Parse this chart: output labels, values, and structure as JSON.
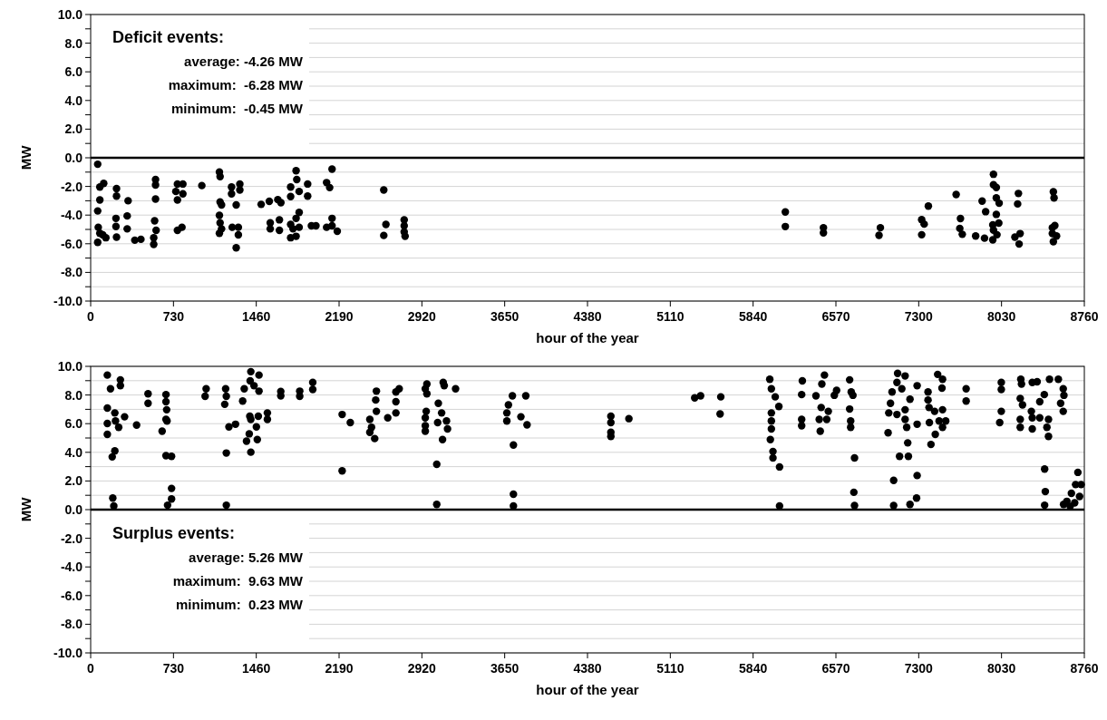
{
  "chart_data": [
    {
      "type": "scatter",
      "xlabel": "hour of the year",
      "ylabel": "MW",
      "color": "#000000",
      "marker": "circle",
      "grid": "y",
      "annotations": [
        "Deficit events:",
        "average: -4.26 MW",
        "maximum:  -6.28 MW",
        "minimum:  -0.45 MW"
      ],
      "ref_lines": [
        {
          "axis": "y",
          "value": 0,
          "color": "#000000"
        }
      ],
      "xlim": [
        0,
        8760
      ],
      "xticks": [
        0,
        730,
        1460,
        2190,
        2920,
        3650,
        4380,
        5110,
        5840,
        6570,
        7300,
        8030,
        8760
      ],
      "ylim": [
        -10,
        10
      ],
      "yticks": [
        {
          "value": -10,
          "label": "-10.0"
        },
        {
          "value": -9,
          "label": null
        },
        {
          "value": -8,
          "label": "-8.0"
        },
        {
          "value": -7,
          "label": null
        },
        {
          "value": -6,
          "label": "-6.0"
        },
        {
          "value": -5,
          "label": null
        },
        {
          "value": -4,
          "label": "-4.0"
        },
        {
          "value": -3,
          "label": null
        },
        {
          "value": -2,
          "label": "-2.0"
        },
        {
          "value": -1,
          "label": null
        },
        {
          "value": 0,
          "label": "0.0"
        },
        {
          "value": 1,
          "label": null
        },
        {
          "value": 2,
          "label": "2.0"
        },
        {
          "value": 3,
          "label": null
        },
        {
          "value": 4,
          "label": "4.0"
        },
        {
          "value": 5,
          "label": null
        },
        {
          "value": 6,
          "label": "6.0"
        },
        {
          "value": 7,
          "label": null
        },
        {
          "value": 8,
          "label": "8.0"
        },
        {
          "value": 9,
          "label": null
        },
        {
          "value": 10,
          "label": "10.0"
        }
      ],
      "x": [
        62,
        81,
        115,
        81,
        62,
        67,
        81,
        62,
        107,
        134,
        228,
        228,
        223,
        223,
        228,
        330,
        322,
        322,
        389,
        443,
        572,
        572,
        572,
        564,
        577,
        556,
        556,
        751,
        765,
        813,
        813,
        765,
        765,
        805,
        980,
        1135,
        1141,
        1141,
        1154,
        1135,
        1141,
        1154,
        1135,
        1242,
        1242,
        1315,
        1315,
        1283,
        1248,
        1302,
        1302,
        1283,
        1503,
        1575,
        1650,
        1677,
        1583,
        1583,
        1664,
        1664,
        1811,
        1817,
        1763,
        1838,
        1763,
        1913,
        1913,
        1838,
        1811,
        1763,
        1784,
        1763,
        1811,
        1838,
        1946,
        1986,
        2128,
        2080,
        2107,
        2128,
        2128,
        2174,
        2080,
        2584,
        2603,
        2584,
        2764,
        2764,
        2764,
        2772,
        6124,
        6124,
        6460,
        6460,
        6962,
        6950,
        7326,
        7348,
        7326,
        7385,
        7630,
        7668,
        7662,
        7684,
        7802,
        7880,
        7859,
        7890,
        7959,
        7959,
        7984,
        7984,
        8009,
        7984,
        7953,
        8006,
        7959,
        7990,
        7953,
        8179,
        8172,
        8148,
        8194,
        8185,
        8487,
        8493,
        8478,
        8500,
        8478,
        8515,
        8487
      ],
      "values": [
        -0.45,
        -2.04,
        -1.79,
        -2.94,
        -3.71,
        -4.85,
        -5.27,
        -5.9,
        -5.38,
        -5.58,
        -2.15,
        -2.67,
        -4.23,
        -4.79,
        -5.54,
        -3.0,
        -4.06,
        -4.96,
        -5.75,
        -5.69,
        -1.52,
        -1.9,
        -2.88,
        -4.4,
        -5.06,
        -5.58,
        -6.04,
        -2.35,
        -1.83,
        -1.83,
        -2.52,
        -2.94,
        -5.06,
        -4.85,
        -1.94,
        -1.0,
        -1.31,
        -3.08,
        -3.29,
        -4.02,
        -4.54,
        -4.96,
        -5.27,
        -2.04,
        -2.52,
        -1.83,
        -2.25,
        -3.29,
        -4.85,
        -4.85,
        -5.38,
        -6.28,
        -3.25,
        -3.04,
        -2.92,
        -3.13,
        -4.54,
        -4.96,
        -4.33,
        -5.06,
        -0.9,
        -1.52,
        -2.04,
        -2.35,
        -2.71,
        -1.83,
        -2.67,
        -3.81,
        -4.23,
        -4.65,
        -4.96,
        -5.58,
        -5.48,
        -4.85,
        -4.75,
        -4.75,
        -0.79,
        -1.73,
        -2.08,
        -4.23,
        -4.75,
        -5.13,
        -4.85,
        -2.25,
        -4.65,
        -5.42,
        -4.33,
        -4.75,
        -5.17,
        -5.48,
        -3.78,
        -4.8,
        -4.88,
        -5.24,
        -4.88,
        -5.41,
        -4.32,
        -4.63,
        -5.37,
        -3.37,
        -2.56,
        -4.24,
        -4.93,
        -5.34,
        -5.46,
        -5.61,
        -3.02,
        -3.76,
        -1.15,
        -1.88,
        -2.07,
        -2.8,
        -3.17,
        -3.95,
        -4.68,
        -4.56,
        -5.05,
        -5.37,
        -5.73,
        -2.49,
        -3.22,
        -5.54,
        -5.29,
        -6.02,
        -2.37,
        -2.8,
        -4.88,
        -4.73,
        -5.29,
        -5.46,
        -5.85
      ]
    },
    {
      "type": "scatter",
      "xlabel": "hour of the year",
      "ylabel": "MW",
      "color": "#000000",
      "marker": "circle",
      "grid": "y",
      "annotations": [
        "Surplus events:",
        "average: 5.26 MW",
        "maximum:  9.63 MW",
        "minimum:  0.23 MW"
      ],
      "ref_lines": [
        {
          "axis": "y",
          "value": 0,
          "color": "#000000"
        }
      ],
      "xlim": [
        0,
        8760
      ],
      "xticks": [
        0,
        730,
        1460,
        2190,
        2920,
        3650,
        4380,
        5110,
        5840,
        6570,
        7300,
        8030,
        8760
      ],
      "ylim": [
        -10,
        10
      ],
      "yticks": [
        {
          "value": -10,
          "label": "-10.0"
        },
        {
          "value": -9,
          "label": null
        },
        {
          "value": -8,
          "label": "-8.0"
        },
        {
          "value": -7,
          "label": null
        },
        {
          "value": -6,
          "label": "-6.0"
        },
        {
          "value": -5,
          "label": null
        },
        {
          "value": -4,
          "label": "-4.0"
        },
        {
          "value": -3,
          "label": null
        },
        {
          "value": -2,
          "label": "-2.0"
        },
        {
          "value": -1,
          "label": null
        },
        {
          "value": 0,
          "label": "0.0"
        },
        {
          "value": 1,
          "label": null
        },
        {
          "value": 2,
          "label": "2.0"
        },
        {
          "value": 3,
          "label": null
        },
        {
          "value": 4,
          "label": "4.0"
        },
        {
          "value": 5,
          "label": null
        },
        {
          "value": 6,
          "label": "6.0"
        },
        {
          "value": 7,
          "label": null
        },
        {
          "value": 8,
          "label": "8.0"
        },
        {
          "value": 9,
          "label": null
        },
        {
          "value": 10,
          "label": "10.0"
        }
      ],
      "x": [
        147,
        175,
        262,
        262,
        147,
        213,
        299,
        147,
        219,
        247,
        147,
        213,
        190,
        195,
        204,
        405,
        506,
        506,
        664,
        664,
        670,
        664,
        630,
        673,
        664,
        713,
        713,
        713,
        678,
        1018,
        1009,
        1190,
        1196,
        1182,
        1219,
        1196,
        1196,
        1277,
        1354,
        1340,
        1412,
        1406,
        1440,
        1484,
        1484,
        1403,
        1412,
        1478,
        1461,
        1398,
        1374,
        1469,
        1412,
        1558,
        1558,
        1676,
        1676,
        1843,
        1843,
        1958,
        1958,
        2217,
        2289,
        2217,
        2461,
        2476,
        2504,
        2461,
        2519,
        2513,
        2519,
        2619,
        2691,
        2720,
        2691,
        2691,
        2964,
        2950,
        2964,
        2958,
        2950,
        2950,
        2950,
        3065,
        3094,
        3059,
        3137,
        3146,
        3102,
        3051,
        3051,
        3108,
        3117,
        3217,
        3718,
        3836,
        3683,
        3669,
        3669,
        3793,
        3847,
        3727,
        3727,
        3727,
        4586,
        4586,
        4586,
        4586,
        4745,
        5325,
        5377,
        5555,
        5549,
        5987,
        6001,
        6035,
        6067,
        6001,
        6001,
        6001,
        5992,
        6015,
        6015,
        6073,
        6073,
        6274,
        6268,
        6268,
        6268,
        6469,
        6446,
        6394,
        6440,
        6503,
        6489,
        6423,
        6432,
        6576,
        6556,
        6691,
        6705,
        6720,
        6691,
        6700,
        6700,
        6734,
        6728,
        6734,
        7114,
        7180,
        7108,
        7151,
        7065,
        7051,
        7036,
        7108,
        7180,
        7180,
        7194,
        7030,
        7223,
        7286,
        7286,
        7203,
        7131,
        7209,
        7079,
        7286,
        7079,
        7223,
        7281,
        7467,
        7510,
        7505,
        7382,
        7382,
        7391,
        7440,
        7510,
        7394,
        7480,
        7538,
        7510,
        7446,
        7408,
        7718,
        7718,
        8028,
        8028,
        8028,
        8014,
        8200,
        8206,
        8301,
        8344,
        8195,
        8215,
        8407,
        8367,
        8453,
        8531,
        8574,
        8580,
        8551,
        8574,
        8293,
        8301,
        8195,
        8195,
        8301,
        8367,
        8444,
        8430,
        8444,
        8410,
        8416,
        8410,
        8703,
        8683,
        8732,
        8646,
        8718,
        8606,
        8635,
        8577,
        8675
      ],
      "values": [
        9.39,
        8.43,
        9.06,
        8.65,
        7.09,
        6.75,
        6.48,
        6.01,
        6.19,
        5.74,
        5.25,
        4.1,
        3.68,
        0.81,
        0.25,
        5.9,
        8.09,
        7.42,
        8.03,
        7.53,
        6.97,
        6.3,
        5.47,
        6.19,
        3.77,
        3.72,
        1.48,
        0.74,
        0.31,
        8.43,
        7.91,
        8.43,
        7.91,
        7.35,
        5.78,
        3.95,
        0.31,
        5.96,
        8.43,
        7.58,
        9.63,
        8.99,
        8.65,
        9.39,
        8.27,
        6.52,
        6.3,
        6.52,
        5.78,
        5.29,
        4.78,
        4.89,
        4.01,
        6.75,
        6.3,
        8.25,
        7.94,
        8.27,
        7.91,
        8.88,
        8.39,
        6.64,
        6.08,
        2.71,
        6.3,
        5.74,
        4.96,
        5.4,
        8.27,
        7.65,
        6.86,
        6.41,
        8.21,
        8.43,
        7.53,
        6.75,
        8.77,
        8.43,
        8.09,
        6.86,
        6.41,
        5.85,
        5.47,
        7.42,
        6.75,
        6.08,
        6.19,
        5.63,
        4.89,
        3.16,
        0.36,
        8.88,
        8.65,
        8.43,
        7.94,
        7.94,
        7.31,
        6.75,
        6.19,
        6.48,
        5.92,
        4.51,
        1.08,
        0.25,
        6.52,
        6.08,
        5.4,
        5.11,
        6.35,
        7.8,
        7.94,
        7.87,
        6.68,
        9.1,
        8.43,
        7.87,
        7.2,
        6.75,
        6.19,
        5.63,
        4.89,
        4.06,
        3.61,
        2.98,
        0.25,
        8.99,
        8.03,
        6.3,
        5.85,
        9.39,
        8.77,
        7.94,
        7.13,
        6.86,
        6.3,
        6.3,
        5.47,
        8.32,
        7.98,
        9.06,
        8.21,
        7.98,
        7.02,
        6.19,
        5.74,
        3.61,
        1.21,
        0.29,
        9.51,
        9.33,
        8.88,
        8.43,
        8.21,
        7.42,
        6.75,
        6.64,
        6.97,
        6.3,
        5.74,
        5.36,
        7.71,
        8.65,
        5.96,
        4.66,
        3.72,
        3.72,
        2.04,
        2.38,
        0.29,
        0.36,
        0.81,
        9.44,
        9.1,
        8.48,
        8.21,
        7.65,
        7.13,
        6.86,
        6.97,
        6.08,
        6.19,
        6.19,
        5.74,
        5.25,
        4.55,
        8.43,
        7.58,
        8.88,
        8.39,
        6.86,
        6.08,
        9.1,
        8.77,
        8.88,
        8.92,
        7.76,
        7.31,
        8.03,
        7.53,
        9.1,
        9.1,
        8.43,
        7.98,
        7.42,
        6.86,
        6.86,
        6.41,
        6.3,
        5.74,
        5.63,
        6.41,
        6.3,
        5.74,
        5.11,
        2.83,
        1.26,
        0.31,
        2.6,
        1.75,
        1.75,
        1.14,
        0.92,
        0.58,
        0.23,
        0.36,
        0.47
      ]
    }
  ]
}
